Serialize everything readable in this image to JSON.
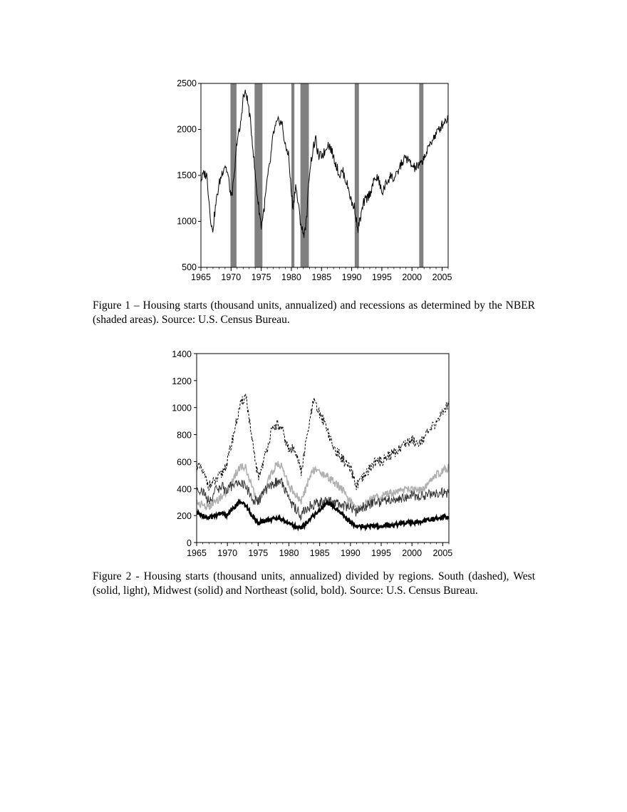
{
  "chart_data": [
    {
      "type": "line",
      "title": "",
      "xlabel": "",
      "ylabel": "",
      "xlim": [
        1965,
        2006
      ],
      "ylim": [
        500,
        2500
      ],
      "x_ticks": [
        "1965",
        "1970",
        "1975",
        "1980",
        "1985",
        "1990",
        "1995",
        "2000",
        "2005"
      ],
      "y_ticks": [
        "500",
        "1000",
        "1500",
        "2000",
        "2500"
      ],
      "grid": false,
      "legend": "none",
      "recession_color": "#808080",
      "line_color": "#000000",
      "recessions": [
        [
          1969.9,
          1970.9
        ],
        [
          1973.9,
          1975.2
        ],
        [
          1980.0,
          1980.5
        ],
        [
          1981.5,
          1982.9
        ],
        [
          1990.5,
          1991.2
        ],
        [
          2001.2,
          2001.9
        ]
      ],
      "series": [
        {
          "x": [
            1965,
            1965.5,
            1966,
            1966.5,
            1966.9,
            1967.5,
            1968,
            1968.5,
            1969,
            1969.5,
            1970,
            1970.5,
            1971,
            1971.5,
            1972,
            1972.5,
            1973,
            1973.5,
            1974,
            1974.5,
            1975,
            1975.5,
            1976,
            1976.5,
            1977,
            1977.5,
            1978,
            1978.5,
            1979,
            1979.5,
            1980,
            1980.3,
            1980.7,
            1981,
            1981.5,
            1982,
            1982.5,
            1983,
            1983.5,
            1984,
            1984.5,
            1985,
            1985.5,
            1986,
            1986.5,
            1987,
            1987.5,
            1988,
            1988.5,
            1989,
            1989.5,
            1990,
            1990.5,
            1991,
            1991.5,
            1992,
            1992.5,
            1993,
            1993.5,
            1994,
            1994.5,
            1995,
            1995.5,
            1996,
            1996.5,
            1997,
            1997.5,
            1998,
            1998.5,
            1999,
            1999.5,
            2000,
            2000.5,
            2001,
            2001.5,
            2002,
            2002.5,
            2003,
            2003.5,
            2004,
            2004.5,
            2005,
            2005.5,
            2006
          ],
          "y": [
            1450,
            1520,
            1500,
            1100,
            880,
            1200,
            1400,
            1530,
            1620,
            1500,
            1250,
            1450,
            1900,
            2000,
            2350,
            2400,
            2200,
            1900,
            1500,
            1200,
            950,
            1150,
            1450,
            1650,
            1950,
            2050,
            2100,
            2050,
            1800,
            1750,
            1300,
            1150,
            1400,
            1250,
            1000,
            850,
            1000,
            1550,
            1750,
            1900,
            1700,
            1720,
            1750,
            1850,
            1800,
            1700,
            1600,
            1500,
            1550,
            1450,
            1350,
            1200,
            1150,
            900,
            1050,
            1200,
            1250,
            1300,
            1400,
            1480,
            1450,
            1300,
            1380,
            1450,
            1500,
            1460,
            1500,
            1600,
            1650,
            1700,
            1650,
            1600,
            1580,
            1600,
            1620,
            1700,
            1750,
            1850,
            1900,
            1950,
            2000,
            2050,
            2100,
            2120
          ]
        }
      ]
    },
    {
      "type": "line",
      "title": "",
      "xlabel": "",
      "ylabel": "",
      "xlim": [
        1965,
        2006
      ],
      "ylim": [
        0,
        1400
      ],
      "x_ticks": [
        "1965",
        "1970",
        "1975",
        "1980",
        "1985",
        "1990",
        "1995",
        "2000",
        "2005"
      ],
      "y_ticks": [
        "0",
        "200",
        "400",
        "600",
        "800",
        "1000",
        "1200",
        "1400"
      ],
      "grid": false,
      "legend": "none",
      "x": [
        1965,
        1966,
        1967,
        1968,
        1969,
        1970,
        1971,
        1972,
        1973,
        1974,
        1975,
        1976,
        1977,
        1978,
        1979,
        1980,
        1981,
        1982,
        1983,
        1984,
        1985,
        1986,
        1987,
        1988,
        1989,
        1990,
        1991,
        1992,
        1993,
        1994,
        1995,
        1996,
        1997,
        1998,
        1999,
        2000,
        2001,
        2002,
        2003,
        2004,
        2005,
        2006
      ],
      "series": [
        {
          "style": "dashed",
          "color": "#000000",
          "values": [
            580,
            520,
            420,
            450,
            500,
            600,
            800,
            1000,
            1100,
            750,
            480,
            620,
            800,
            880,
            820,
            680,
            700,
            520,
            800,
            1050,
            950,
            880,
            720,
            660,
            600,
            540,
            420,
            470,
            540,
            600,
            600,
            640,
            660,
            700,
            740,
            760,
            740,
            780,
            830,
            900,
            960,
            1040
          ]
        },
        {
          "style": "solid-light",
          "color": "#b0b0b0",
          "values": [
            300,
            280,
            260,
            300,
            340,
            380,
            480,
            560,
            560,
            400,
            300,
            380,
            500,
            580,
            560,
            420,
            360,
            300,
            440,
            540,
            520,
            500,
            460,
            420,
            380,
            300,
            240,
            280,
            300,
            340,
            330,
            360,
            370,
            380,
            390,
            390,
            380,
            400,
            450,
            500,
            530,
            560
          ]
        },
        {
          "style": "solid",
          "color": "#333333",
          "values": [
            400,
            380,
            300,
            380,
            420,
            380,
            440,
            440,
            420,
            320,
            300,
            380,
            420,
            450,
            440,
            320,
            260,
            200,
            260,
            280,
            300,
            300,
            300,
            290,
            270,
            260,
            220,
            260,
            280,
            300,
            300,
            320,
            320,
            330,
            340,
            350,
            340,
            350,
            360,
            370,
            370,
            360
          ]
        },
        {
          "style": "solid-bold",
          "color": "#000000",
          "values": [
            220,
            200,
            180,
            200,
            220,
            200,
            260,
            300,
            280,
            200,
            150,
            160,
            170,
            180,
            170,
            140,
            120,
            110,
            150,
            200,
            240,
            290,
            280,
            240,
            200,
            150,
            120,
            120,
            120,
            120,
            120,
            130,
            130,
            140,
            150,
            150,
            150,
            160,
            170,
            180,
            190,
            190
          ]
        }
      ]
    }
  ],
  "captions": {
    "figure1": "Figure 1 – Housing starts (thousand units, annualized) and recessions as determined by the NBER (shaded areas). Source: U.S. Census Bureau.",
    "figure2": "Figure 2 - Housing starts (thousand units, annualized) divided by regions. South (dashed), West (solid, light), Midwest (solid) and Northeast (solid, bold). Source: U.S. Census Bureau."
  }
}
